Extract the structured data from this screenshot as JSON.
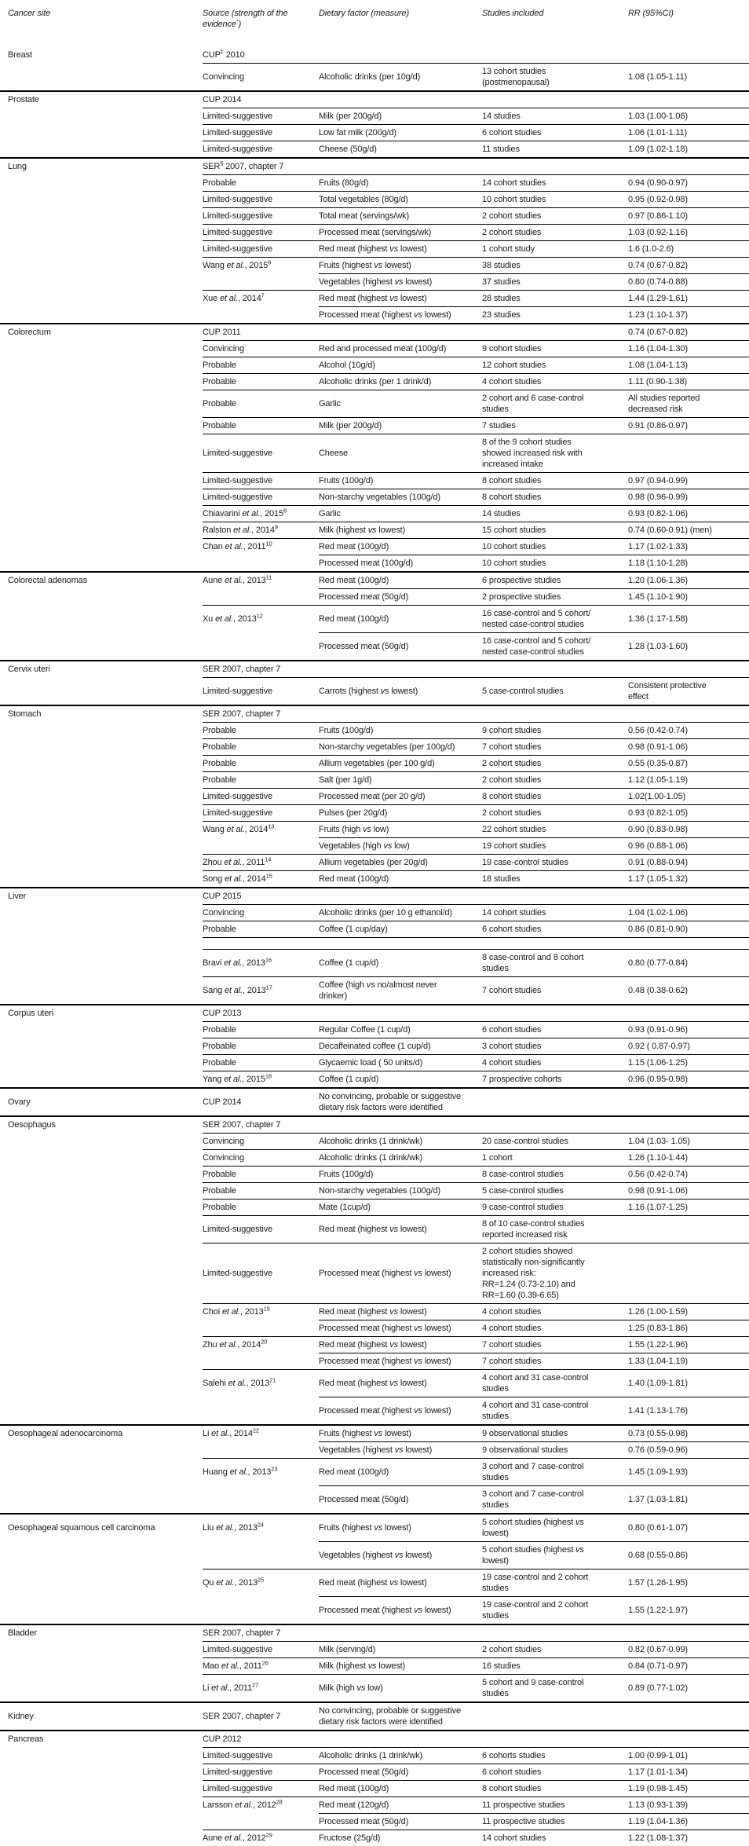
{
  "page": {
    "background": "#ffffff",
    "text_color": "#1b1b1b",
    "rule_color": "#000000"
  },
  "table": {
    "columns": [
      {
        "key": "site",
        "label": "Cancer site"
      },
      {
        "key": "source",
        "label": "Source (strength of the evidence^*^)"
      },
      {
        "key": "dietary",
        "label": "Dietary factor (measure)"
      },
      {
        "key": "studies",
        "label": "Studies included"
      },
      {
        "key": "rr",
        "label": "RR (95%CI)"
      }
    ],
    "rows": [
      {
        "site": "Breast",
        "source": "CUP^‡^ 2010",
        "rule": "none"
      },
      {
        "source": "Convincing",
        "dietary": "Alcoholic drinks (per 10g/d)",
        "studies": "13 cohort studies\n(postmenopausal)",
        "rr": "1.08 (1.05-1.11)",
        "rule": "source"
      },
      {
        "site": "Prostate",
        "source": "CUP 2014",
        "rule": "site"
      },
      {
        "source": "Limited-suggestive",
        "dietary": "Milk (per 200g/d)",
        "studies": "14 studies",
        "rr": "1.03 (1.00-1.06)",
        "rule": "source"
      },
      {
        "source": "Limited-suggestive",
        "dietary": "Low fat milk (200g/d)",
        "studies": "6 cohort studies",
        "rr": "1.06 (1.01-1.11)",
        "rule": "source"
      },
      {
        "source": "Limited-suggestive",
        "dietary": "Cheese (50g/d)",
        "studies": "11 studies",
        "rr": "1.09 (1.02-1.18)",
        "rule": "source"
      },
      {
        "site": "Lung",
        "source": "SER^§^ 2007, chapter 7",
        "rule": "site"
      },
      {
        "source": "Probable",
        "dietary": "Fruits (80g/d)",
        "studies": "14 cohort studies",
        "rr": "0.94 (0.90-0.97)",
        "rule": "source"
      },
      {
        "source": "Limited-suggestive",
        "dietary": "Total vegetables (80g/d)",
        "studies": "10 cohort studies",
        "rr": "0.95 (0.92-0.98)",
        "rule": "source"
      },
      {
        "source": "Limited-suggestive",
        "dietary": "Total meat (servings/wk)",
        "studies": "2 cohort studies",
        "rr": "0.97 (0.86-1.10)",
        "rule": "source"
      },
      {
        "source": "Limited-suggestive",
        "dietary": "Processed meat (servings/wk)",
        "studies": "2 cohort studies",
        "rr": "1.03 (0.92-1.16)",
        "rule": "source"
      },
      {
        "source": "Limited-suggestive",
        "dietary": "Red meat (highest vs lowest)",
        "studies": "1 cohort study",
        "rr": "1.6 (1.0-2.6)",
        "rule": "source"
      },
      {
        "source": "Wang et al., 2015^6^",
        "dietary": "Fruits (highest vs lowest)",
        "studies": "38 studies",
        "rr": "0.74 (0.67-0.82)",
        "rule": "source"
      },
      {
        "dietary": "Vegetables (highest vs lowest)",
        "studies": "37 studies",
        "rr": "0.80 (0.74-0.88)",
        "rule": "dietary"
      },
      {
        "source": "Xue et al., 2014^7^",
        "dietary": "Red meat (highest vs lowest)",
        "studies": "28 studies",
        "rr": "1.44 (1.29-1.61)",
        "rule": "source"
      },
      {
        "dietary": "Processed meat (highest vs lowest)",
        "studies": "23 studies",
        "rr": "1.23 (1.10-1.37)",
        "rule": "dietary"
      },
      {
        "site": "Colorectum",
        "source": "CUP 2011",
        "rr": "0.74 (0.67-0.82)",
        "rule": "site"
      },
      {
        "source": "Convincing",
        "dietary": "Red and processed meat (100g/d)",
        "studies": "9 cohort studies",
        "rr": "1.16 (1.04-1.30)",
        "rule": "source"
      },
      {
        "source": "Probable",
        "dietary": "Alcohol (10g/d)",
        "studies": "12 cohort studies",
        "rr": "1.08 (1.04-1.13)",
        "rule": "source"
      },
      {
        "source": "Probable",
        "dietary": "Alcoholic drinks (per 1 drink/d)",
        "studies": "4 cohort studies",
        "rr": "1.11 (0.90-1.38)",
        "rule": "source"
      },
      {
        "source": "Probable",
        "dietary": "Garlic",
        "studies": "2 cohort and 6 case-control\nstudies",
        "rr": "All studies reported\ndecreased risk",
        "rule": "source"
      },
      {
        "source": "Probable",
        "dietary": "Milk (per 200g/d)",
        "studies": "7 studies",
        "rr": "0.91 (0.86-0.97)",
        "rule": "source"
      },
      {
        "source": "Limited-suggestive",
        "dietary": "Cheese",
        "studies": "8 of the 9 cohort studies\nshowed increased risk with\nincreased intake",
        "rule": "source"
      },
      {
        "source": "Limited-suggestive",
        "dietary": "Fruits (100g/d)",
        "studies": "8 cohort studies",
        "rr": "0.97 (0.94-0.99)",
        "rule": "source"
      },
      {
        "source": "Limited-suggestive",
        "dietary": "Non-starchy vegetables (100g/d)",
        "studies": "8 cohort studies",
        "rr": "0.98 (0.96-0.99)",
        "rule": "source"
      },
      {
        "source": "Chiavarini et al., 2015^8^",
        "dietary": "Garlic",
        "studies": "14 studies",
        "rr": "0.93 (0.82-1.06)",
        "rule": "source"
      },
      {
        "source": "Ralston et al., 2014^9^",
        "dietary": "Milk (highest vs lowest)",
        "studies": "15 cohort studies",
        "rr": "0.74 (0.60-0.91) (men)",
        "rule": "source"
      },
      {
        "source": "Chan et al., 2011^10^",
        "dietary": "Red meat (100g/d)",
        "studies": "10 cohort studies",
        "rr": "1.17 (1.02-1.33)",
        "rule": "source"
      },
      {
        "dietary": "Processed meat (100g/d)",
        "studies": "10 cohort studies",
        "rr": "1.18 (1.10-1.28)",
        "rule": "dietary"
      },
      {
        "site": "Colorectal adenomas",
        "source": "Aune et al., 2013^11^",
        "dietary": "Red meat (100g/d)",
        "studies": "6 prospective studies",
        "rr": "1.20 (1.06-1.36)",
        "rule": "site"
      },
      {
        "dietary": "Processed meat (50g/d)",
        "studies": "2 prospective studies",
        "rr": "1.45 (1.10-1.90)",
        "rule": "dietary"
      },
      {
        "source": "Xu et al., 2013^12^",
        "dietary": "Red meat (100g/d)",
        "studies": "16 case-control and 5 cohort/\nnested case-control studies",
        "rr": "1.36 (1.17-1.58)",
        "rule": "source"
      },
      {
        "dietary": "Processed meat (50g/d)",
        "studies": "16 case-control and 5 cohort/\nnested case-control studies",
        "rr": "1.28 (1.03-1.60)",
        "rule": "dietary"
      },
      {
        "site": "Cervix uteri",
        "source": "SER 2007, chapter 7",
        "rule": "site"
      },
      {
        "source": "Limited-suggestive",
        "dietary": "Carrots (highest vs lowest)",
        "studies": "5 case-control studies",
        "rr": "Consistent protective\neffect",
        "rule": "source"
      },
      {
        "site": "Stomach",
        "source": "SER 2007, chapter 7",
        "rule": "site"
      },
      {
        "source": "Probable",
        "dietary": "Fruits (100g/d)",
        "studies": "9 cohort studies",
        "rr": "0.56 (0.42-0.74)",
        "rule": "source"
      },
      {
        "source": "Probable",
        "dietary": "Non-starchy vegetables (per 100g/d)",
        "studies": "7 cohort studies",
        "rr": "0.98 (0.91-1.06)",
        "rule": "source"
      },
      {
        "source": "Probable",
        "dietary": "Allium vegetables (per 100 g/d)",
        "studies": "2 cohort studies",
        "rr": "0.55 (0.35-0.87)",
        "rule": "source"
      },
      {
        "source": "Probable",
        "dietary": "Salt (per 1g/d)",
        "studies": "2 cohort studies",
        "rr": "1.12 (1.05-1.19)",
        "rule": "source"
      },
      {
        "source": "Limited-suggestive",
        "dietary": "Processed meat (per 20 g/d)",
        "studies": "8 cohort studies",
        "rr": "1.02(1.00-1.05)",
        "rule": "source"
      },
      {
        "source": "Limited-suggestive",
        "dietary": "Pulses (per 20g/d)",
        "studies": "2 cohort studies",
        "rr": "0.93 (0.82-1.05)",
        "rule": "source"
      },
      {
        "source": "Wang et al., 2014^13^",
        "dietary": "Fruits (high vs low)",
        "studies": "22 cohort studies",
        "rr": "0.90 (0.83-0.98)",
        "rule": "source"
      },
      {
        "dietary": "Vegetables (high vs low)",
        "studies": "19 cohort studies",
        "rr": "0.96 (0.88-1.06)",
        "rule": "dietary"
      },
      {
        "source": "Zhou et al., 2011^14^",
        "dietary": "Allium vegetables (per 20g/d)",
        "studies": "19 case-control studies",
        "rr": "0.91 (0.88-0.94)",
        "rule": "source"
      },
      {
        "source": "Song et al., 2014^15^",
        "dietary": "Red meat (100g/d)",
        "studies": "18 studies",
        "rr": "1.17 (1.05-1.32)",
        "rule": "source"
      },
      {
        "site": "Liver",
        "source": "CUP 2015",
        "rule": "site"
      },
      {
        "source": "Convincing",
        "dietary": "Alcoholic drinks (per 10 g ethanol/d)",
        "studies": "14 cohort studies",
        "rr": "1.04 (1.02-1.06)",
        "rule": "source"
      },
      {
        "source": "Probable",
        "dietary": "Coffee (1 cup/day)",
        "studies": "6 cohort studies",
        "rr": "0.86 (0.81-0.90)",
        "rule": "source"
      },
      {
        "rule": "source",
        "spacer": true
      },
      {
        "source": "Bravi et al., 2013^16^",
        "dietary": "Coffee (1 cup/d)",
        "studies": "8 case-control and 8 cohort\nstudies",
        "rr": "0.80 (0.77-0.84)",
        "rule": "source"
      },
      {
        "source": "Sang et al., 2013^17^",
        "dietary": "Coffee (high vs no/almost never\ndrinker)",
        "studies": "7 cohort studies",
        "rr": "0.48 (0.38-0.62)",
        "rule": "source"
      },
      {
        "site": "Corpus uteri",
        "source": "CUP 2013",
        "rule": "site"
      },
      {
        "source": "Probable",
        "dietary": "Regular Coffee (1 cup/d)",
        "studies": "6 cohort studies",
        "rr": "0.93 (0.91-0.96)",
        "rule": "source"
      },
      {
        "source": "Probable",
        "dietary": "Decaffeinated coffee (1 cup/d)",
        "studies": "3 cohort studies",
        "rr": "0.92 ( 0.87-0.97)",
        "rule": "source"
      },
      {
        "source": "Probable",
        "dietary": "Glycaemic load ( 50 units/d)",
        "studies": "4 cohort studies",
        "rr": "1.15 (1.06-1.25)",
        "rule": "source"
      },
      {
        "source": "Yang et al., 2015^18^",
        "dietary": "Coffee (1 cup/d)",
        "studies": "7 prospective cohorts",
        "rr": "0.96 (0.95-0.98)",
        "rule": "source"
      },
      {
        "site": "Ovary",
        "source": "CUP 2014",
        "dietary": "No convincing, probable or suggestive\ndietary risk factors were identified",
        "rule": "site",
        "dspan2": true
      },
      {
        "site": "Oesophagus",
        "source": "SER 2007, chapter 7",
        "rule": "site"
      },
      {
        "source": "Convincing",
        "dietary": "Alcoholic drinks (1 drink/wk)",
        "studies": "20 case-control studies",
        "rr": "1.04 (1.03- 1.05)",
        "rule": "source"
      },
      {
        "source": "Convincing",
        "dietary": "Alcoholic drinks (1 drink/wk)",
        "studies": "1 cohort",
        "rr": "1.26 (1.10-1.44)",
        "rule": "source"
      },
      {
        "source": "Probable",
        "dietary": "Fruits (100g/d)",
        "studies": "8 case-control studies",
        "rr": "0.56 (0.42-0.74)",
        "rule": "source"
      },
      {
        "source": "Probable",
        "dietary": "Non-starchy vegetables (100g/d)",
        "studies": "5 case-control studies",
        "rr": "0.98 (0.91-1.06)",
        "rule": "source"
      },
      {
        "source": "Probable",
        "dietary": "Mate (1cup/d)",
        "studies": "9 case-control studies",
        "rr": "1.16 (1.07-1.25)",
        "rule": "source"
      },
      {
        "source": "Limited-suggestive",
        "dietary": "Red meat (highest vs lowest)",
        "studies": "8 of 10 case-control studies\nreported increased risk",
        "rule": "source"
      },
      {
        "source": "Limited-suggestive",
        "dietary": "Processed meat (highest vs lowest)",
        "studies": "2 cohort studies showed\nstatistically non-significantly\nincreased risk:\nRR=1.24 (0.73-2.10) and\nRR=1.60 (0.39-6.65)",
        "rule": "source"
      },
      {
        "source": "Choi et al., 2013^19^",
        "dietary": "Red meat (highest vs lowest)",
        "studies": "4 cohort studies",
        "rr": "1.26 (1.00-1.59)",
        "rule": "source"
      },
      {
        "dietary": "Processed meat (highest vs lowest)",
        "studies": "4 cohort studies",
        "rr": "1.25 (0.83-1.86)",
        "rule": "dietary"
      },
      {
        "source": "Zhu et al., 2014^20^",
        "dietary": "Red meat (highest vs lowest)",
        "studies": "7 cohort studies",
        "rr": "1.55 (1.22-1.96)",
        "rule": "source"
      },
      {
        "dietary": "Processed meat (highest vs lowest)",
        "studies": "7 cohort studies",
        "rr": "1.33 (1.04-1.19)",
        "rule": "dietary"
      },
      {
        "source": "Salehi et al., 2013^21^",
        "dietary": "Red meat (highest vs lowest)",
        "studies": "4 cohort and 31 case-control\nstudies",
        "rr": "1.40 (1.09-1.81)",
        "rule": "source"
      },
      {
        "dietary": "Processed meat (highest vs lowest)",
        "studies": "4 cohort and 31 case-control\nstudies",
        "rr": "1.41 (1.13-1.76)",
        "rule": "dietary"
      },
      {
        "site": "Oesophageal adenocarcinoma",
        "source": "Li et al., 2014^22^",
        "dietary": "Fruits (highest vs lowest)",
        "studies": "9 observational studies",
        "rr": "0.73 (0.55-0.98)",
        "rule": "site"
      },
      {
        "dietary": "Vegetables (highest vs lowest)",
        "studies": "9 observational studies",
        "rr": "0.76 (0.59-0.96)",
        "rule": "dietary"
      },
      {
        "source": "Huang et al., 2013^23^",
        "dietary": "Red meat (100g/d)",
        "studies": "3 cohort and 7 case-control\nstudies",
        "rr": "1.45 (1.09-1.93)",
        "rule": "source"
      },
      {
        "dietary": "Processed meat (50g/d)",
        "studies": "3 cohort and 7 case-control\nstudies",
        "rr": "1.37 (1.03-1.81)",
        "rule": "dietary"
      },
      {
        "site": "Oesophageal squamous cell carcinoma",
        "source": "Liu et al., 2013^24^",
        "dietary": "Fruits (highest vs lowest)",
        "studies": "5 cohort studies (highest vs\nlowest)",
        "rr": "0.80 (0.61-1.07)",
        "rule": "site"
      },
      {
        "dietary": "Vegetables (highest vs lowest)",
        "studies": "5 cohort studies (highest vs\nlowest)",
        "rr": "0.68 (0.55-0.86)",
        "rule": "dietary"
      },
      {
        "source": "Qu et al., 2013^25^",
        "dietary": "Red meat (highest vs lowest)",
        "studies": "19 case-control and 2 cohort\nstudies",
        "rr": "1.57 (1.26-1.95)",
        "rule": "source"
      },
      {
        "dietary": "Processed meat (highest vs lowest)",
        "studies": "19 case-control and 2 cohort\nstudies",
        "rr": "1.55 (1.22-1.97)",
        "rule": "dietary"
      },
      {
        "site": "Bladder",
        "source": "SER 2007, chapter 7",
        "rule": "site"
      },
      {
        "source": "Limited-suggestive",
        "dietary": "Milk (serving/d)",
        "studies": "2 cohort studies",
        "rr": "0.82 (0.67-0.99)",
        "rule": "source"
      },
      {
        "source": "Mao et al., 2011^26^",
        "dietary": "Milk (highest vs lowest)",
        "studies": "16 studies",
        "rr": "0.84 (0.71-0.97)",
        "rule": "source"
      },
      {
        "source": "Li et al., 2011^27^",
        "dietary": "Milk (high vs low)",
        "studies": "5 cohort and 9 case-control\nstudies",
        "rr": "0.89 (0.77-1.02)",
        "rule": "source"
      },
      {
        "site": "Kidney",
        "source": "SER 2007, chapter 7",
        "dietary": "No convincing, probable or suggestive\ndietary risk factors were identified",
        "rule": "site",
        "dspan2": true
      },
      {
        "site": "Pancreas",
        "source": "CUP 2012",
        "rule": "site"
      },
      {
        "source": "Limited-suggestive",
        "dietary": "Alcoholic drinks (1 drink/wk)",
        "studies": "6 cohorts studies",
        "rr": "1.00 (0.99-1.01)",
        "rule": "source"
      },
      {
        "source": "Limited-suggestive",
        "dietary": "Processed meat (50g/d)",
        "studies": "6 cohort studies",
        "rr": "1.17 (1.01-1.34)",
        "rule": "source"
      },
      {
        "source": "Limited-suggestive",
        "dietary": "Red meat (100g/d)",
        "studies": "8 cohort studies",
        "rr": "1.19 (0.98-1.45)",
        "rule": "source"
      },
      {
        "source": "Larsson et al., 2012^28^",
        "dietary": "Red meat (120g/d)",
        "studies": "11 prospective studies",
        "rr": "1.13 (0.93-1.39)",
        "rule": "source"
      },
      {
        "dietary": "Processed meat (50g/d)",
        "studies": "11 prospective studies",
        "rr": "1.19 (1.04-1.36)",
        "rule": "dietary"
      },
      {
        "source": "Aune et al., 2012^29^",
        "dietary": "Fructose (25g/d)",
        "studies": "14 cohort studies",
        "rr": "1.22 (1.08-1.37)",
        "rule": "source"
      }
    ]
  }
}
